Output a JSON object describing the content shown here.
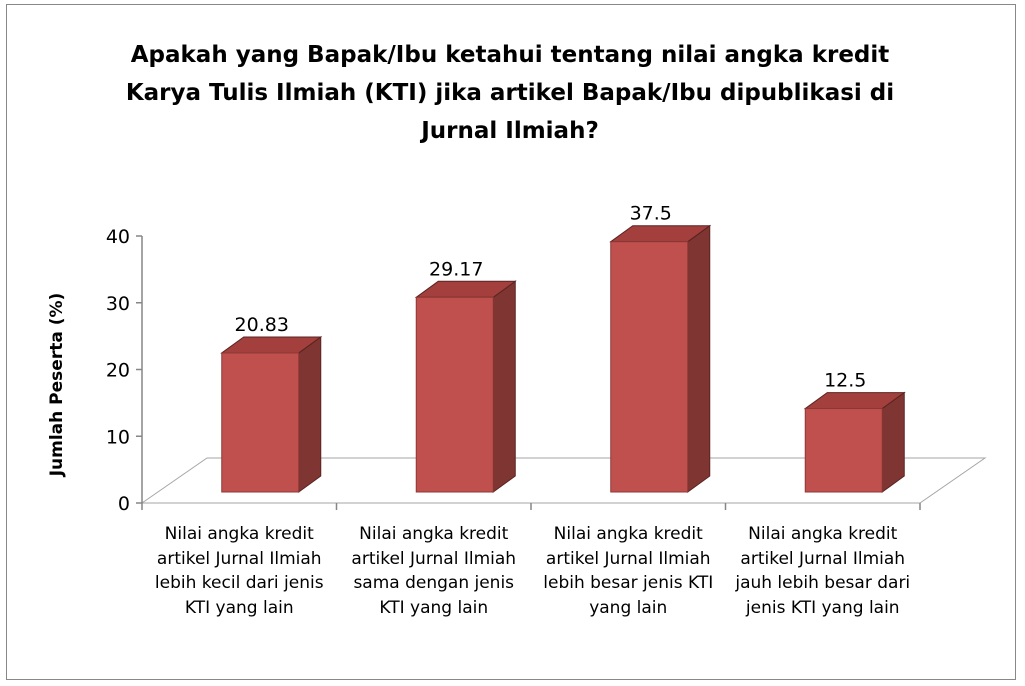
{
  "chart_data": {
    "type": "bar3d",
    "title": "Apakah yang Bapak/Ibu ketahui tentang nilai angka kredit Karya Tulis Ilmiah (KTI) jika artikel Bapak/Ibu dipublikasi di Jurnal Ilmiah?",
    "y_label": "Jumlah Peserta (%)",
    "categories": [
      "Nilai angka kredit artikel Jurnal Ilmiah lebih kecil dari jenis KTI yang lain",
      "Nilai angka kredit artikel Jurnal Ilmiah sama dengan jenis KTI yang lain",
      "Nilai angka kredit artikel Jurnal Ilmiah lebih besar jenis KTI yang lain",
      "Nilai angka kredit artikel Jurnal Ilmiah jauh lebih besar dari jenis KTI yang lain"
    ],
    "values": [
      20.83,
      29.17,
      37.5,
      12.5
    ],
    "color": "#c0504d",
    "ylim": [
      0,
      40
    ],
    "yticks": [
      0,
      10,
      20,
      30,
      40
    ],
    "grid": false
  }
}
